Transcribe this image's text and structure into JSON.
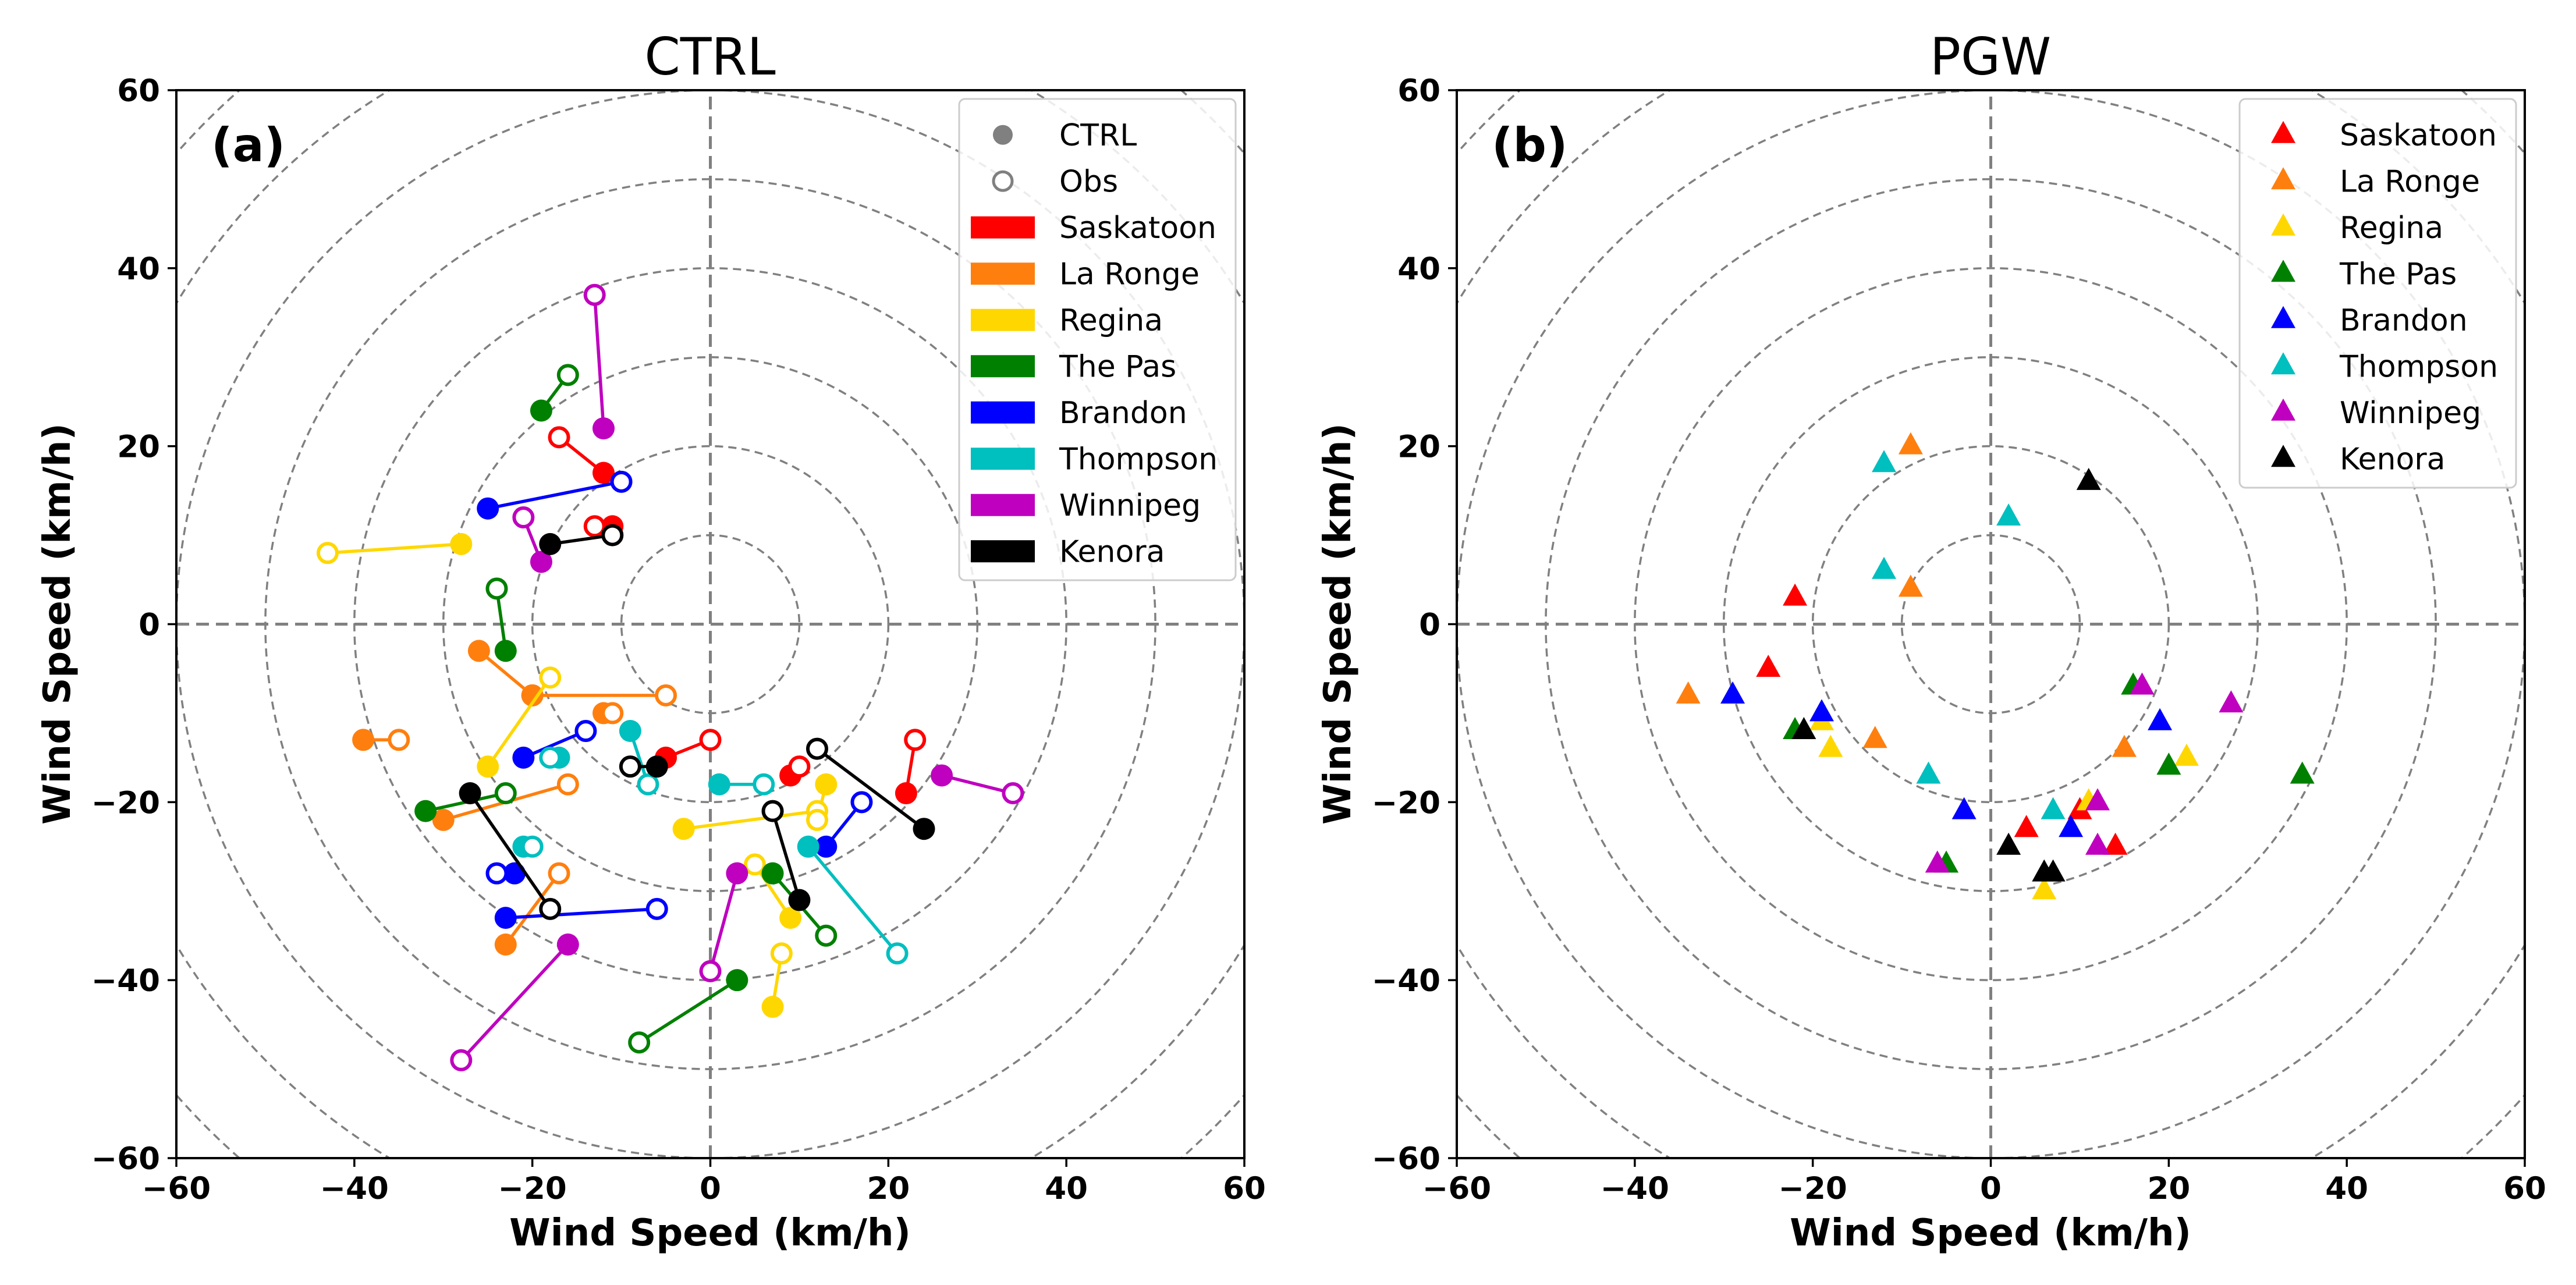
{
  "chart_data": [
    {
      "type": "scatter",
      "title": "CTRL",
      "panel_label": "(a)",
      "xlabel": "Wind Speed (km/h)",
      "ylabel": "Wind Speed (km/h)",
      "xlim": [
        -60,
        60
      ],
      "ylim": [
        -60,
        60
      ],
      "xticks": [
        "−60",
        "−40",
        "−20",
        "0",
        "20",
        "40",
        "60"
      ],
      "yticks": [
        "−60",
        "−40",
        "−20",
        "0",
        "20",
        "40",
        "60"
      ],
      "rings": [
        10,
        20,
        30,
        40,
        50,
        60,
        70,
        80
      ],
      "legend_position": "top-right",
      "legend_markers": [
        {
          "label": "CTRL",
          "style": "filled"
        },
        {
          "label": "Obs",
          "style": "hollow"
        }
      ],
      "series": [
        {
          "name": "Saskatoon",
          "color": "#ff0000",
          "pairs": [
            [
              [
                -12,
                17
              ],
              [
                -17,
                21
              ]
            ],
            [
              [
                -11,
                11
              ],
              [
                -13,
                11
              ]
            ],
            [
              [
                -5,
                -15
              ],
              [
                0,
                -13
              ]
            ],
            [
              [
                9,
                -17
              ],
              [
                10,
                -16
              ]
            ],
            [
              [
                22,
                -19
              ],
              [
                23,
                -13
              ]
            ]
          ]
        },
        {
          "name": "La Ronge",
          "color": "#ff7f0e",
          "pairs": [
            [
              [
                -39,
                -13
              ],
              [
                -35,
                -13
              ]
            ],
            [
              [
                -26,
                -3
              ],
              [
                -20,
                -8
              ]
            ],
            [
              [
                -20,
                -8
              ],
              [
                -5,
                -8
              ]
            ],
            [
              [
                -30,
                -22
              ],
              [
                -16,
                -18
              ]
            ],
            [
              [
                -23,
                -36
              ],
              [
                -17,
                -28
              ]
            ],
            [
              [
                -12,
                -10
              ],
              [
                -11,
                -10
              ]
            ]
          ]
        },
        {
          "name": "Regina",
          "color": "#ffd700",
          "pairs": [
            [
              [
                -28,
                9
              ],
              [
                -43,
                8
              ]
            ],
            [
              [
                -25,
                -16
              ],
              [
                -18,
                -6
              ]
            ],
            [
              [
                -3,
                -23
              ],
              [
                12,
                -21
              ]
            ],
            [
              [
                9,
                -33
              ],
              [
                5,
                -27
              ]
            ],
            [
              [
                7,
                -43
              ],
              [
                8,
                -37
              ]
            ],
            [
              [
                13,
                -18
              ],
              [
                12,
                -22
              ]
            ]
          ]
        },
        {
          "name": "The Pas",
          "color": "#008000",
          "pairs": [
            [
              [
                -19,
                24
              ],
              [
                -16,
                28
              ]
            ],
            [
              [
                -23,
                -3
              ],
              [
                -24,
                4
              ]
            ],
            [
              [
                -32,
                -21
              ],
              [
                -23,
                -19
              ]
            ],
            [
              [
                3,
                -40
              ],
              [
                -8,
                -47
              ]
            ],
            [
              [
                7,
                -28
              ],
              [
                13,
                -35
              ]
            ]
          ]
        },
        {
          "name": "Brandon",
          "color": "#0000ff",
          "pairs": [
            [
              [
                -25,
                13
              ],
              [
                -10,
                16
              ]
            ],
            [
              [
                -21,
                -15
              ],
              [
                -14,
                -12
              ]
            ],
            [
              [
                -23,
                -33
              ],
              [
                -6,
                -32
              ]
            ],
            [
              [
                -22,
                -28
              ],
              [
                -24,
                -28
              ]
            ],
            [
              [
                13,
                -25
              ],
              [
                17,
                -20
              ]
            ]
          ]
        },
        {
          "name": "Thompson",
          "color": "#00bfbf",
          "pairs": [
            [
              [
                -17,
                -15
              ],
              [
                -18,
                -15
              ]
            ],
            [
              [
                -21,
                -25
              ],
              [
                -20,
                -25
              ]
            ],
            [
              [
                -9,
                -12
              ],
              [
                -7,
                -18
              ]
            ],
            [
              [
                1,
                -18
              ],
              [
                6,
                -18
              ]
            ],
            [
              [
                11,
                -25
              ],
              [
                21,
                -37
              ]
            ]
          ]
        },
        {
          "name": "Winnipeg",
          "color": "#bf00bf",
          "pairs": [
            [
              [
                -12,
                22
              ],
              [
                -13,
                37
              ]
            ],
            [
              [
                -19,
                7
              ],
              [
                -21,
                12
              ]
            ],
            [
              [
                -16,
                -36
              ],
              [
                -28,
                -49
              ]
            ],
            [
              [
                3,
                -28
              ],
              [
                0,
                -39
              ]
            ],
            [
              [
                26,
                -17
              ],
              [
                34,
                -19
              ]
            ]
          ]
        },
        {
          "name": "Kenora",
          "color": "#000000",
          "pairs": [
            [
              [
                -18,
                9
              ],
              [
                -11,
                10
              ]
            ],
            [
              [
                -6,
                -16
              ],
              [
                -9,
                -16
              ]
            ],
            [
              [
                -27,
                -19
              ],
              [
                -18,
                -32
              ]
            ],
            [
              [
                10,
                -31
              ],
              [
                7,
                -21
              ]
            ],
            [
              [
                24,
                -23
              ],
              [
                12,
                -14
              ]
            ]
          ]
        }
      ]
    },
    {
      "type": "scatter",
      "title": "PGW",
      "panel_label": "(b)",
      "xlabel": "Wind Speed (km/h)",
      "ylabel": "Wind Speed (km/h)",
      "xlim": [
        -60,
        60
      ],
      "ylim": [
        -60,
        60
      ],
      "xticks": [
        "−60",
        "−40",
        "−20",
        "0",
        "20",
        "40",
        "60"
      ],
      "yticks": [
        "−60",
        "−40",
        "−20",
        "0",
        "20",
        "40",
        "60"
      ],
      "rings": [
        10,
        20,
        30,
        40,
        50,
        60,
        70,
        80
      ],
      "legend_position": "top-right",
      "series": [
        {
          "name": "Saskatoon",
          "color": "#ff0000",
          "points": [
            [
              -22,
              3
            ],
            [
              -25,
              -5
            ],
            [
              4,
              -23
            ],
            [
              10,
              -21
            ],
            [
              14,
              -25
            ]
          ]
        },
        {
          "name": "La Ronge",
          "color": "#ff7f0e",
          "points": [
            [
              -9,
              20
            ],
            [
              -9,
              4
            ],
            [
              -34,
              -8
            ],
            [
              -13,
              -13
            ],
            [
              15,
              -14
            ]
          ]
        },
        {
          "name": "Regina",
          "color": "#ffd700",
          "points": [
            [
              -19,
              -11
            ],
            [
              -18,
              -14
            ],
            [
              6,
              -30
            ],
            [
              11,
              -20
            ],
            [
              22,
              -15
            ]
          ]
        },
        {
          "name": "The Pas",
          "color": "#008000",
          "points": [
            [
              -22,
              -12
            ],
            [
              -5,
              -27
            ],
            [
              16,
              -7
            ],
            [
              20,
              -16
            ],
            [
              35,
              -17
            ]
          ]
        },
        {
          "name": "Brandon",
          "color": "#0000ff",
          "points": [
            [
              -29,
              -8
            ],
            [
              -19,
              -10
            ],
            [
              -3,
              -21
            ],
            [
              9,
              -23
            ],
            [
              19,
              -11
            ]
          ]
        },
        {
          "name": "Thompson",
          "color": "#00bfbf",
          "points": [
            [
              -12,
              18
            ],
            [
              -12,
              6
            ],
            [
              2,
              12
            ],
            [
              -7,
              -17
            ],
            [
              7,
              -21
            ]
          ]
        },
        {
          "name": "Winnipeg",
          "color": "#bf00bf",
          "points": [
            [
              -6,
              -27
            ],
            [
              12,
              -20
            ],
            [
              12,
              -25
            ],
            [
              17,
              -7
            ],
            [
              27,
              -9
            ]
          ]
        },
        {
          "name": "Kenora",
          "color": "#000000",
          "points": [
            [
              11,
              16
            ],
            [
              -21,
              -12
            ],
            [
              2,
              -25
            ],
            [
              6,
              -28
            ],
            [
              7,
              -28
            ]
          ]
        }
      ]
    }
  ]
}
